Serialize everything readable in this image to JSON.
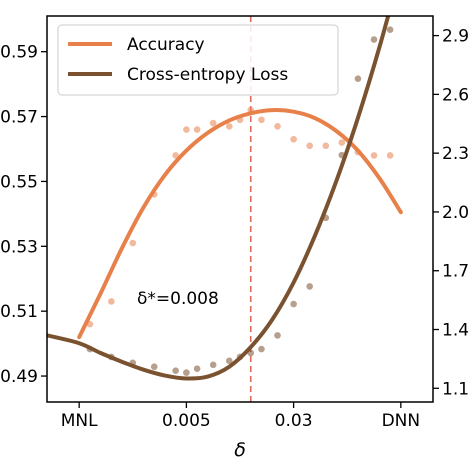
{
  "chart_data": {
    "type": "line",
    "xlabel": "δ",
    "x_ticks": [
      "MNL",
      "0.005",
      "0.03",
      "DNN"
    ],
    "xlim": [
      -0.3,
      3.3
    ],
    "ylim_left": [
      0.482,
      0.601
    ],
    "ylim_right": [
      1.03,
      3.0
    ],
    "y_ticks_left": [
      {
        "value": 0.49,
        "label": "0.49"
      },
      {
        "value": 0.51,
        "label": "0.51"
      },
      {
        "value": 0.53,
        "label": "0.53"
      },
      {
        "value": 0.55,
        "label": "0.55"
      },
      {
        "value": 0.57,
        "label": "0.57"
      },
      {
        "value": 0.59,
        "label": "0.59"
      }
    ],
    "y_ticks_right": [
      {
        "value": 1.1,
        "label": "1.1"
      },
      {
        "value": 1.4,
        "label": "1.4"
      },
      {
        "value": 1.7,
        "label": "1.7"
      },
      {
        "value": 2.0,
        "label": "2.0"
      },
      {
        "value": 2.3,
        "label": "2.3"
      },
      {
        "value": 2.6,
        "label": "2.6"
      },
      {
        "value": 2.9,
        "label": "2.9"
      }
    ],
    "vline_x": 1.6,
    "annotation": "δ*=0.008",
    "legend_position": "top-left",
    "series": [
      {
        "name": "Accuracy",
        "axis": "left",
        "color": "#e8804a",
        "curve_x": [
          0.0,
          0.2,
          0.4,
          0.6,
          0.8,
          1.0,
          1.2,
          1.4,
          1.6,
          1.8,
          2.0,
          2.2,
          2.4,
          2.6,
          2.8,
          3.0
        ],
        "curve_y": [
          0.502,
          0.5155,
          0.5295,
          0.542,
          0.552,
          0.5595,
          0.565,
          0.5688,
          0.571,
          0.572,
          0.5715,
          0.5695,
          0.5655,
          0.5595,
          0.551,
          0.5405
        ],
        "points_x": [
          0.1,
          0.3,
          0.5,
          0.7,
          0.9,
          1.0,
          1.1,
          1.25,
          1.4,
          1.5,
          1.6,
          1.7,
          1.85,
          2.0,
          2.15,
          2.3,
          2.45,
          2.6,
          2.75,
          2.9
        ],
        "points_y": [
          0.506,
          0.513,
          0.531,
          0.546,
          0.558,
          0.566,
          0.566,
          0.568,
          0.567,
          0.569,
          0.572,
          0.569,
          0.567,
          0.563,
          0.561,
          0.561,
          0.562,
          0.559,
          0.558,
          0.558
        ]
      },
      {
        "name": "Cross-entropy Loss",
        "axis": "right",
        "color": "#7a5230",
        "curve_x": [
          -0.3,
          0.0,
          0.2,
          0.4,
          0.6,
          0.8,
          1.0,
          1.2,
          1.4,
          1.6,
          1.8,
          2.0,
          2.2,
          2.4,
          2.6,
          2.8,
          3.0,
          3.1
        ],
        "curve_y": [
          1.37,
          1.33,
          1.28,
          1.235,
          1.195,
          1.165,
          1.15,
          1.16,
          1.21,
          1.31,
          1.45,
          1.64,
          1.88,
          2.16,
          2.48,
          2.84,
          3.24,
          3.45
        ],
        "points_x": [
          0.1,
          0.3,
          0.5,
          0.7,
          0.9,
          1.0,
          1.1,
          1.25,
          1.4,
          1.5,
          1.6,
          1.7,
          1.85,
          2.0,
          2.15,
          2.3,
          2.45,
          2.6,
          2.75,
          2.9
        ],
        "points_y": [
          1.3,
          1.26,
          1.23,
          1.21,
          1.19,
          1.18,
          1.2,
          1.22,
          1.24,
          1.26,
          1.28,
          1.3,
          1.37,
          1.53,
          1.62,
          1.97,
          2.29,
          2.68,
          2.88,
          2.93
        ]
      }
    ]
  }
}
